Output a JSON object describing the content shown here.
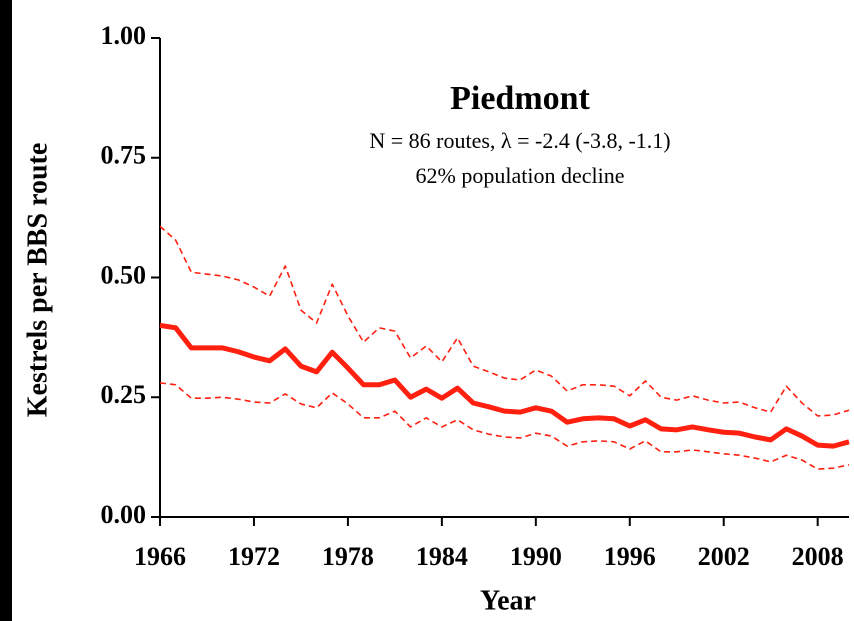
{
  "chart_data": {
    "type": "line",
    "title": "Piedmont",
    "subtitle": "N = 86 routes, λ = -2.4 (-3.8, -1.1)",
    "annotation": "62% population decline",
    "x_label": "Year",
    "y_label": "Kestrels per BBS route",
    "x": [
      1966,
      1967,
      1968,
      1969,
      1970,
      1971,
      1972,
      1973,
      1974,
      1975,
      1976,
      1977,
      1978,
      1979,
      1980,
      1981,
      1982,
      1983,
      1984,
      1985,
      1986,
      1987,
      1988,
      1989,
      1990,
      1991,
      1992,
      1993,
      1994,
      1995,
      1996,
      1997,
      1998,
      1999,
      2000,
      2001,
      2002,
      2003,
      2004,
      2005,
      2006,
      2007,
      2008,
      2009,
      2010
    ],
    "series": [
      {
        "color": "#ff2010",
        "style": "solid",
        "values": [
          0.4,
          0.395,
          0.353,
          0.353,
          0.353,
          0.345,
          0.334,
          0.326,
          0.351,
          0.315,
          0.303,
          0.344,
          0.311,
          0.276,
          0.276,
          0.286,
          0.25,
          0.267,
          0.248,
          0.269,
          0.238,
          0.23,
          0.221,
          0.219,
          0.228,
          0.221,
          0.198,
          0.205,
          0.207,
          0.205,
          0.19,
          0.203,
          0.184,
          0.182,
          0.188,
          0.182,
          0.177,
          0.175,
          0.167,
          0.161,
          0.184,
          0.169,
          0.15,
          0.148,
          0.157
        ]
      },
      {
        "color": "#ff2010",
        "style": "dashed",
        "values": [
          0.607,
          0.578,
          0.511,
          0.507,
          0.503,
          0.495,
          0.48,
          0.461,
          0.524,
          0.432,
          0.405,
          0.486,
          0.42,
          0.365,
          0.395,
          0.388,
          0.332,
          0.357,
          0.324,
          0.374,
          0.315,
          0.303,
          0.29,
          0.286,
          0.307,
          0.294,
          0.263,
          0.276,
          0.276,
          0.273,
          0.253,
          0.284,
          0.25,
          0.244,
          0.253,
          0.244,
          0.238,
          0.24,
          0.228,
          0.219,
          0.273,
          0.238,
          0.211,
          0.213,
          0.223
        ]
      },
      {
        "color": "#ff2010",
        "style": "dashed",
        "values": [
          0.28,
          0.276,
          0.248,
          0.248,
          0.25,
          0.246,
          0.24,
          0.238,
          0.257,
          0.236,
          0.228,
          0.259,
          0.236,
          0.207,
          0.207,
          0.221,
          0.188,
          0.207,
          0.188,
          0.203,
          0.182,
          0.173,
          0.167,
          0.165,
          0.175,
          0.169,
          0.148,
          0.157,
          0.159,
          0.157,
          0.142,
          0.159,
          0.136,
          0.136,
          0.14,
          0.136,
          0.132,
          0.129,
          0.123,
          0.115,
          0.129,
          0.119,
          0.1,
          0.102,
          0.109
        ]
      }
    ],
    "xlim": [
      1966,
      2010
    ],
    "xticks": [
      1966,
      1972,
      1978,
      1984,
      1990,
      1996,
      2002,
      2008
    ],
    "ylim": [
      0,
      1
    ],
    "yticks": [
      {
        "value": 0,
        "label": "0.00"
      },
      0.25,
      {
        "value": 0.5,
        "label": "0.50"
      },
      0.75,
      {
        "value": 1,
        "label": "1.00"
      }
    ],
    "grid": false
  }
}
